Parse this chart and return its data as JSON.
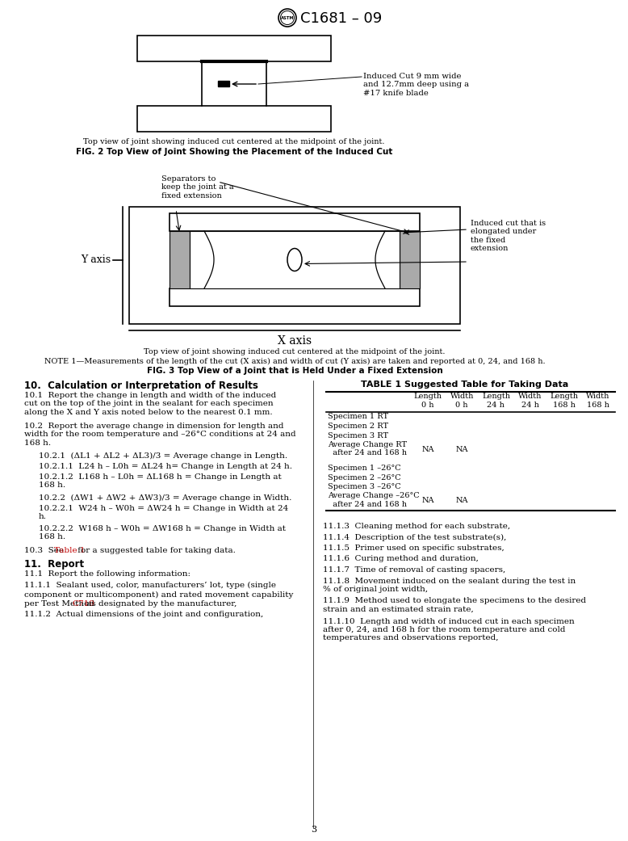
{
  "page_title": "C1681 – 09",
  "fig2_caption_top": "Top view of joint showing induced cut centered at the midpoint of the joint.",
  "fig2_caption": "FIG. 2 Top View of Joint Showing the Placement of the Induced Cut",
  "fig3_caption_top": "Top view of joint showing induced cut centered at the midpoint of the joint.",
  "fig3_note": "NOTE 1—Measurements of the length of the cut (X axis) and width of cut (Y axis) are taken and reported at 0, 24, and 168 h.",
  "fig3_caption": "FIG. 3 Top View of a Joint that is Held Under a Fixed Extension",
  "induced_cut_label": "Induced Cut 9 mm wide\nand 12.7mm deep using a\n#17 knife blade",
  "separators_label": "Separators to\nkeep the joint at a\nfixed extension",
  "induced_cut_label2": "Induced cut that is\nelongated under\nthe fixed\nextension",
  "y_axis_label": "Y axis",
  "x_axis_label": "X axis",
  "section10_title": "10.  Calculation or Interpretation of Results",
  "s10_p1": "10.1  Report the change in length and width of the induced\ncut on the top of the joint in the sealant for each specimen\nalong the X and Y axis noted below to the nearest 0.1 mm.",
  "s10_p2": "10.2  Report the average change in dimension for length and\nwidth for the room temperature and –26°C conditions at 24 and\n168 h.",
  "s10_p3": "10.2.1  (ΔL1 + ΔL2 + ΔL3)/3 = Average change in Length.",
  "s10_p4": "10.2.1.1  L24 h – L0h = ΔL24 h= Change in Length at 24 h.",
  "s10_p5": "10.2.1.2  L168 h – L0h = ΔL168 h = Change in Length at\n168 h.",
  "s10_p6": "10.2.2  (ΔW1 + ΔW2 + ΔW3)/3 = Average change in Width.",
  "s10_p7": "10.2.2.1  W24 h – W0h = ΔW24 h = Change in Width at 24\nh.",
  "s10_p8": "10.2.2.2  W168 h – W0h = ΔW168 h = Change in Width at\n168 h.",
  "s10_p9_pre": "10.3  See ",
  "s10_p9_link": "Table 1",
  "s10_p9_post": " for a suggested table for taking data.",
  "section11_title": "11.  Report",
  "s11_p1": "11.1  Report the following information:",
  "s11_p2a": "11.1.1  Sealant used, color, manufacturers’ lot, type (single\ncomponent or multicomponent) and rated movement capability\nper Test Method ",
  "s11_p2b": "C719",
  "s11_p2c": " as designated by the manufacturer,",
  "s11_p3": "11.1.2  Actual dimensions of the joint and configuration,",
  "rc_paras": [
    "11.1.3  Cleaning method for each substrate,",
    "11.1.4  Description of the test substrate(s),",
    "11.1.5  Primer used on specific substrates,",
    "11.1.6  Curing method and duration,",
    "11.1.7  Time of removal of casting spacers,",
    "11.1.8  Movement induced on the sealant during the test in\n% of original joint width,",
    "11.1.9  Method used to elongate the specimens to the desired\nstrain and an estimated strain rate,",
    "11.1.10  Length and width of induced cut in each specimen\nafter 0, 24, and 168 h for the room temperature and cold\ntemperatures and observations reported,"
  ],
  "table1_title": "TABLE 1 Suggested Table for Taking Data",
  "page_number": "3",
  "red_color": "#C00000",
  "gray_sep": "#aaaaaa"
}
